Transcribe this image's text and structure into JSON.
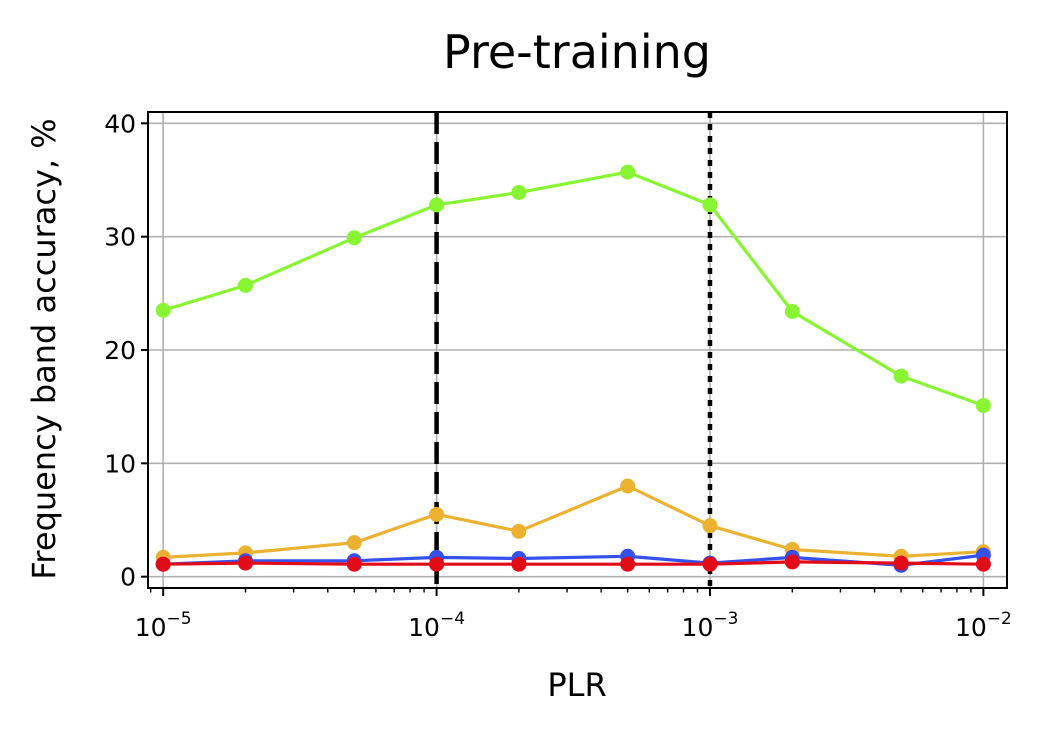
{
  "chart_data": {
    "type": "line",
    "title": "Pre-training",
    "xlabel": "PLR",
    "ylabel": "Frequency band accuracy, %",
    "x_scale": "log",
    "xlim": [
      8.8e-06,
      0.0122
    ],
    "ylim": [
      -1,
      41
    ],
    "grid": true,
    "x_ticks": [
      {
        "value": 1e-05,
        "base": "10",
        "exp": "−5"
      },
      {
        "value": 0.0001,
        "base": "10",
        "exp": "−4"
      },
      {
        "value": 0.001,
        "base": "10",
        "exp": "−3"
      },
      {
        "value": 0.01,
        "base": "10",
        "exp": "−2"
      }
    ],
    "y_ticks": [
      0,
      10,
      20,
      30,
      40
    ],
    "x": [
      1e-05,
      2e-05,
      5e-05,
      0.0001,
      0.0002,
      0.0005,
      0.001,
      0.002,
      0.005,
      0.01
    ],
    "series": [
      {
        "color": "#88f533",
        "values": [
          23.5,
          25.7,
          29.9,
          32.8,
          33.9,
          35.7,
          32.8,
          23.4,
          17.7,
          15.1
        ]
      },
      {
        "color": "#ebb130",
        "values": [
          1.7,
          2.1,
          3.0,
          5.5,
          4.0,
          8.0,
          4.5,
          2.4,
          1.8,
          2.2
        ]
      },
      {
        "color": "#3451ee",
        "values": [
          1.1,
          1.4,
          1.4,
          1.7,
          1.6,
          1.8,
          1.2,
          1.7,
          1.0,
          1.9
        ]
      },
      {
        "color": "#e20c18",
        "values": [
          1.1,
          1.2,
          1.1,
          1.1,
          1.1,
          1.1,
          1.1,
          1.3,
          1.2,
          1.1
        ]
      }
    ],
    "vlines": [
      {
        "x": 0.0001,
        "style": "dashed",
        "color": "#000000"
      },
      {
        "x": 0.001,
        "style": "dotted",
        "color": "#000000"
      }
    ]
  }
}
